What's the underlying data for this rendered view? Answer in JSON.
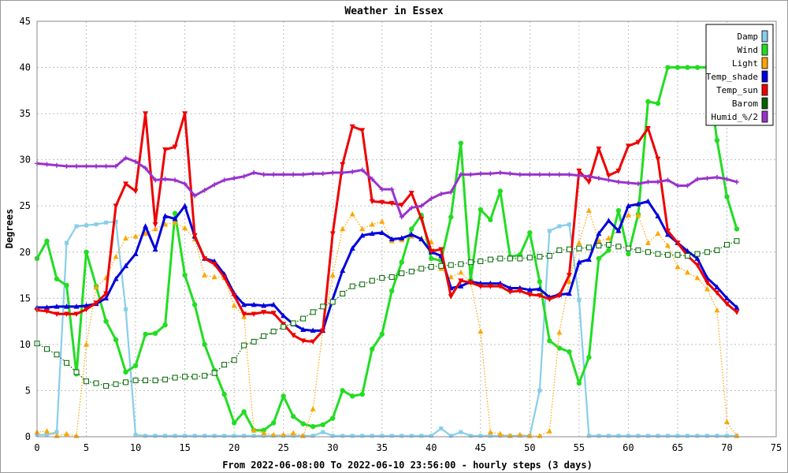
{
  "chart_data": {
    "type": "line",
    "title": "Weather in Essex",
    "xlabel": "From 2022-06-08:00 To 2022-06-10 23:56:00 - hourly steps (3 days)",
    "ylabel": "Degrees",
    "xlim": [
      0,
      75
    ],
    "ylim": [
      0,
      45
    ],
    "xticks": [
      "0",
      "5",
      "10",
      "15",
      "20",
      "25",
      "30",
      "35",
      "40",
      "45",
      "50",
      "55",
      "60",
      "65",
      "70",
      "75"
    ],
    "yticks": [
      "0",
      "5",
      "10",
      "15",
      "20",
      "25",
      "30",
      "35",
      "40",
      "45"
    ],
    "grid": true,
    "legend_position": "top-right",
    "series": [
      {
        "name": "Damp",
        "color": "#87ceeb",
        "marker": "square",
        "line": "solid",
        "values": [
          0.2,
          0.2,
          0.5,
          21,
          22.8,
          22.9,
          23,
          23.2,
          23.3,
          13.8,
          0.2,
          0.1,
          0.1,
          0.1,
          0.1,
          0.1,
          0.1,
          0.1,
          0.1,
          0.1,
          0.1,
          0.1,
          0.1,
          0.1,
          0.1,
          0.1,
          0.1,
          0.1,
          0.1,
          0.5,
          0.1,
          0.1,
          0.1,
          0.1,
          0.1,
          0.1,
          0.1,
          0.1,
          0.1,
          0.1,
          0.1,
          0.9,
          0.1,
          0.5,
          0.1,
          0.1,
          0.1,
          0.1,
          0.1,
          0.1,
          0.1,
          5,
          22.3,
          22.8,
          23,
          14.8,
          0.1,
          0.1,
          0.1,
          0.1,
          0.1,
          0.1,
          0.1,
          0.1,
          0.1,
          0.1,
          0.1,
          0.1,
          0.1,
          0.1,
          0.1,
          0.1
        ]
      },
      {
        "name": "Wind",
        "color": "#22dd22",
        "marker": "circle",
        "line": "thick",
        "values": [
          19.3,
          21.2,
          17.1,
          16.4,
          6.8,
          20,
          16.3,
          12.5,
          10.5,
          7,
          7.7,
          11.1,
          11.2,
          12.1,
          24.2,
          17.5,
          14.3,
          10,
          7.2,
          4.6,
          1.5,
          2.7,
          0.7,
          0.7,
          1.5,
          4.4,
          2.2,
          1.4,
          1.1,
          1.3,
          2,
          5,
          4.4,
          4.6,
          9.5,
          11.1,
          15.8,
          18.9,
          22.5,
          24,
          19.3,
          19.1,
          23.8,
          31.8,
          17,
          24.6,
          23.5,
          26.6,
          19.5,
          19.7,
          22.1,
          16.8,
          10.4,
          9.6,
          9.2,
          5.8,
          8.6,
          19.3,
          20.2,
          24.5,
          19.8,
          24.1,
          36.3,
          36.1,
          40,
          40,
          40,
          40,
          40,
          32.1,
          26,
          22.5
        ]
      },
      {
        "name": "Light",
        "color": "#ffa500",
        "marker": "triangle-up",
        "line": "dotted",
        "values": [
          0.5,
          0.6,
          0.1,
          0.3,
          0.1,
          10,
          16.2,
          17.2,
          19.5,
          21.5,
          21.7,
          22,
          22.5,
          23,
          23.2,
          22.6,
          21.4,
          17.5,
          17.3,
          17.2,
          14.2,
          13,
          0.7,
          0.4,
          0.2,
          0.2,
          0.4,
          0.1,
          3,
          11.5,
          17.5,
          22.5,
          24.1,
          22.5,
          23,
          23.3,
          21.2,
          21.3,
          21.7,
          21.5,
          21.1,
          18.2,
          17.3,
          17.8,
          16.7,
          11.4,
          0.5,
          0.3,
          0.1,
          0.2,
          0.1,
          0.1,
          0.6,
          11.3,
          16.8,
          21,
          24.5,
          21.2,
          21.5,
          22.4,
          24,
          24,
          21,
          22,
          20.7,
          18.4,
          17.8,
          17.2,
          16,
          13.7,
          1.6,
          0.1
        ]
      },
      {
        "name": "Temp_shade",
        "color": "#0000dd",
        "marker": "triangle-up",
        "line": "thick",
        "values": [
          14,
          14,
          14.1,
          14.1,
          14.1,
          14.2,
          14.4,
          15,
          17.1,
          18.5,
          19.8,
          22.8,
          20.3,
          23.9,
          23.6,
          25,
          21.7,
          19.3,
          19,
          17.6,
          15.5,
          14.3,
          14.3,
          14.2,
          14.3,
          13.1,
          12.2,
          11.6,
          11.5,
          11.5,
          14.9,
          18,
          20.4,
          21.8,
          22,
          22.1,
          21.4,
          21.5,
          21.9,
          21.4,
          20,
          19.6,
          16.1,
          16.3,
          16.8,
          16.6,
          16.6,
          16.6,
          16.1,
          16.1,
          15.9,
          16,
          15.1,
          15.4,
          15.5,
          18.9,
          19.2,
          22,
          23.4,
          22.3,
          25,
          25.2,
          25.5,
          23.9,
          21.9,
          21,
          20.1,
          19.3,
          17.2,
          16.2,
          15,
          14
        ]
      },
      {
        "name": "Temp_sun",
        "color": "#ee0000",
        "marker": "triangle-down",
        "line": "thick",
        "values": [
          13.7,
          13.6,
          13.3,
          13.3,
          13.3,
          13.8,
          14.5,
          15.5,
          25,
          27.4,
          26.6,
          35,
          23,
          31.1,
          31.4,
          35,
          21.8,
          19.3,
          18.7,
          17.3,
          15.3,
          13.3,
          13.3,
          13.5,
          13.4,
          12.2,
          11,
          10.4,
          10.3,
          11.5,
          22,
          29.5,
          33.6,
          33.2,
          25.5,
          25.4,
          25.3,
          25.1,
          26.4,
          23.6,
          20.1,
          20.3,
          15.2,
          16.9,
          16.7,
          16.3,
          16.3,
          16.3,
          15.7,
          15.8,
          15.4,
          15.3,
          14.9,
          15.3,
          17.5,
          28.8,
          27.6,
          31.2,
          28.3,
          28.8,
          31.5,
          31.9,
          33.4,
          30.1,
          22.3,
          21,
          19.6,
          18.6,
          16.7,
          15.6,
          14.4,
          13.5
        ]
      },
      {
        "name": "Barom",
        "color": "#006400",
        "marker": "open-square",
        "line": "dotted",
        "values": [
          10.1,
          9.5,
          8.9,
          8,
          7,
          6,
          5.8,
          5.5,
          5.7,
          5.9,
          6.1,
          6.1,
          6.1,
          6.2,
          6.4,
          6.5,
          6.5,
          6.6,
          6.9,
          7.8,
          8.3,
          9.9,
          10.3,
          10.9,
          11.4,
          11.9,
          12.3,
          12.8,
          13.5,
          14.1,
          14.6,
          15.5,
          16.3,
          16.5,
          16.9,
          17.2,
          17.3,
          17.7,
          17.9,
          18.2,
          18.4,
          18.5,
          18.6,
          18.7,
          18.9,
          19,
          19.2,
          19.3,
          19.3,
          19.3,
          19.4,
          19.5,
          19.6,
          20.2,
          20.3,
          20.4,
          20.5,
          20.7,
          20.8,
          20.6,
          20.4,
          20.2,
          20,
          19.8,
          19.7,
          19.7,
          19.6,
          19.8,
          20,
          20.2,
          20.8,
          21.2
        ]
      },
      {
        "name": "Humid_%/2",
        "color": "#9932cc",
        "marker": "plus",
        "line": "thick",
        "values": [
          29.6,
          29.5,
          29.4,
          29.3,
          29.3,
          29.3,
          29.3,
          29.3,
          29.3,
          30.2,
          29.8,
          29.1,
          27.8,
          27.9,
          27.8,
          27.4,
          26.1,
          26.7,
          27.3,
          27.8,
          28,
          28.2,
          28.6,
          28.4,
          28.4,
          28.4,
          28.4,
          28.4,
          28.5,
          28.5,
          28.6,
          28.6,
          28.7,
          28.9,
          27.9,
          26.8,
          26.8,
          23.8,
          24.8,
          25,
          25.8,
          26.3,
          26.5,
          28.4,
          28.4,
          28.5,
          28.5,
          28.6,
          28.5,
          28.4,
          28.4,
          28.4,
          28.4,
          28.4,
          28.4,
          28.3,
          28.2,
          28,
          27.8,
          27.6,
          27.5,
          27.4,
          27.6,
          27.6,
          27.8,
          27.2,
          27.2,
          27.9,
          28,
          28.1,
          27.9,
          27.6
        ]
      }
    ]
  }
}
